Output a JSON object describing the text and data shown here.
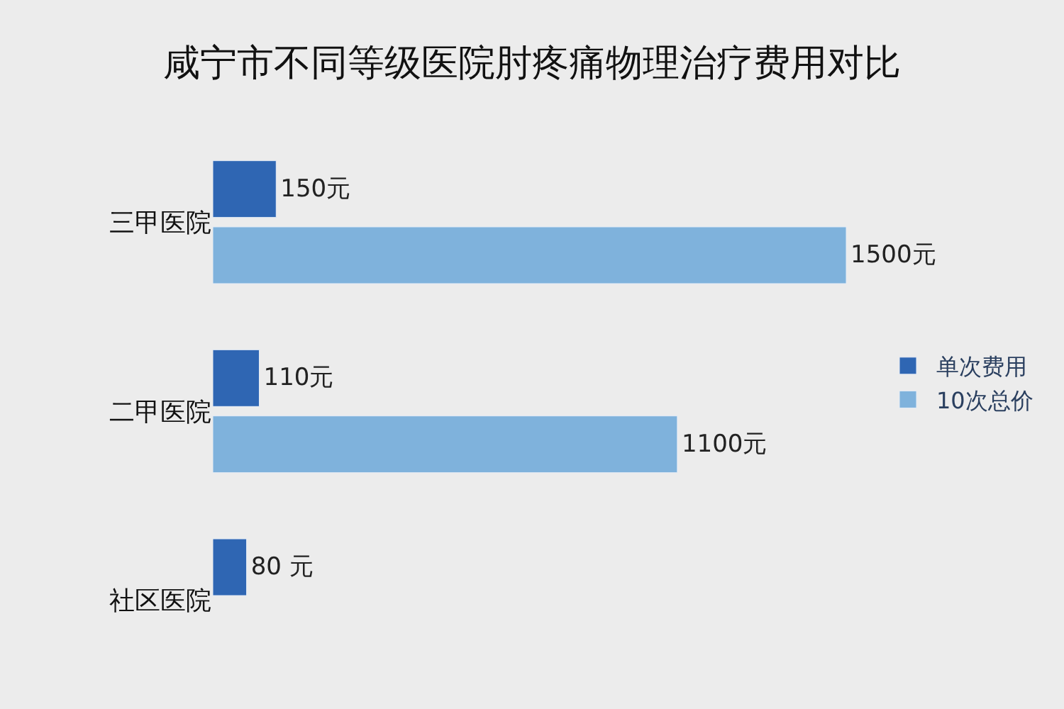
{
  "chart_data": {
    "type": "bar",
    "orientation": "horizontal",
    "title": "咸宁市不同等级医院肘疼痛物理治疗费用对比",
    "categories": [
      "三甲医院",
      "二甲医院",
      "社区医院"
    ],
    "series": [
      {
        "name": "单次费用",
        "color": "#2f66b3",
        "values": [
          150,
          110,
          80
        ],
        "value_labels": [
          "150元",
          "110元",
          "80 元"
        ]
      },
      {
        "name": "10次总价",
        "color": "#7fb2dc",
        "values": [
          1500,
          1100,
          null
        ],
        "value_labels": [
          "1500元",
          "1100元",
          null
        ]
      }
    ],
    "legend": "right",
    "grid": false,
    "tick_labels": "y"
  }
}
